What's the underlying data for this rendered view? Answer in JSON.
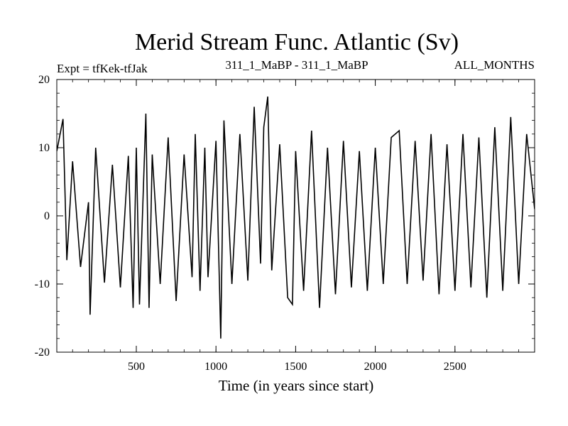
{
  "chart_data": {
    "type": "line",
    "title": "Merid Stream Func. Atlantic (Sv)",
    "subtitle_left": "Expt = tfKek-tfJak",
    "subtitle_center": "311_1_MaBP - 311_1_MaBP",
    "subtitle_right": "ALL_MONTHS",
    "xlabel": "Time (in years since start)",
    "ylabel": "",
    "xlim": [
      1,
      3000
    ],
    "ylim": [
      -20,
      20
    ],
    "x_ticks": [
      500,
      1000,
      1500,
      2000,
      2500
    ],
    "y_ticks": [
      -20,
      -10,
      0,
      10,
      20
    ],
    "grid": false,
    "series": [
      {
        "color": "#000000",
        "x": [
          1,
          40,
          64,
          100,
          150,
          200,
          210,
          245,
          300,
          350,
          400,
          450,
          480,
          500,
          520,
          560,
          580,
          600,
          650,
          700,
          750,
          800,
          850,
          870,
          900,
          930,
          950,
          1000,
          1030,
          1050,
          1100,
          1150,
          1200,
          1240,
          1280,
          1300,
          1325,
          1350,
          1400,
          1450,
          1480,
          1500,
          1550,
          1600,
          1650,
          1700,
          1750,
          1800,
          1850,
          1900,
          1950,
          2000,
          2050,
          2100,
          2150,
          2200,
          2250,
          2300,
          2350,
          2400,
          2450,
          2500,
          2550,
          2600,
          2650,
          2700,
          2750,
          2800,
          2850,
          2900,
          2950,
          3000
        ],
        "values": [
          9.5,
          14.2,
          -6.5,
          8.0,
          -7.5,
          2.0,
          -14.5,
          10.0,
          -9.8,
          7.5,
          -10.5,
          8.8,
          -13.5,
          10.0,
          -13.0,
          15.0,
          -13.5,
          9.0,
          -10.0,
          11.5,
          -12.5,
          9.0,
          -9.0,
          12.0,
          -11.0,
          10.0,
          -9.0,
          11.0,
          -18.0,
          14.0,
          -10.0,
          12.0,
          -9.5,
          16.0,
          -7.0,
          13.0,
          17.5,
          -8.0,
          10.5,
          -12.0,
          -13.0,
          9.5,
          -11.0,
          12.5,
          -13.5,
          10.0,
          -11.5,
          11.0,
          -10.5,
          9.5,
          -11.0,
          10.0,
          -10.0,
          11.5,
          12.5,
          -10.0,
          11.0,
          -9.5,
          12.0,
          -11.5,
          10.5,
          -11.0,
          12.0,
          -10.5,
          11.5,
          -12.0,
          13.0,
          -11.0,
          14.5,
          -10.0,
          12.0,
          1.0
        ]
      }
    ]
  }
}
